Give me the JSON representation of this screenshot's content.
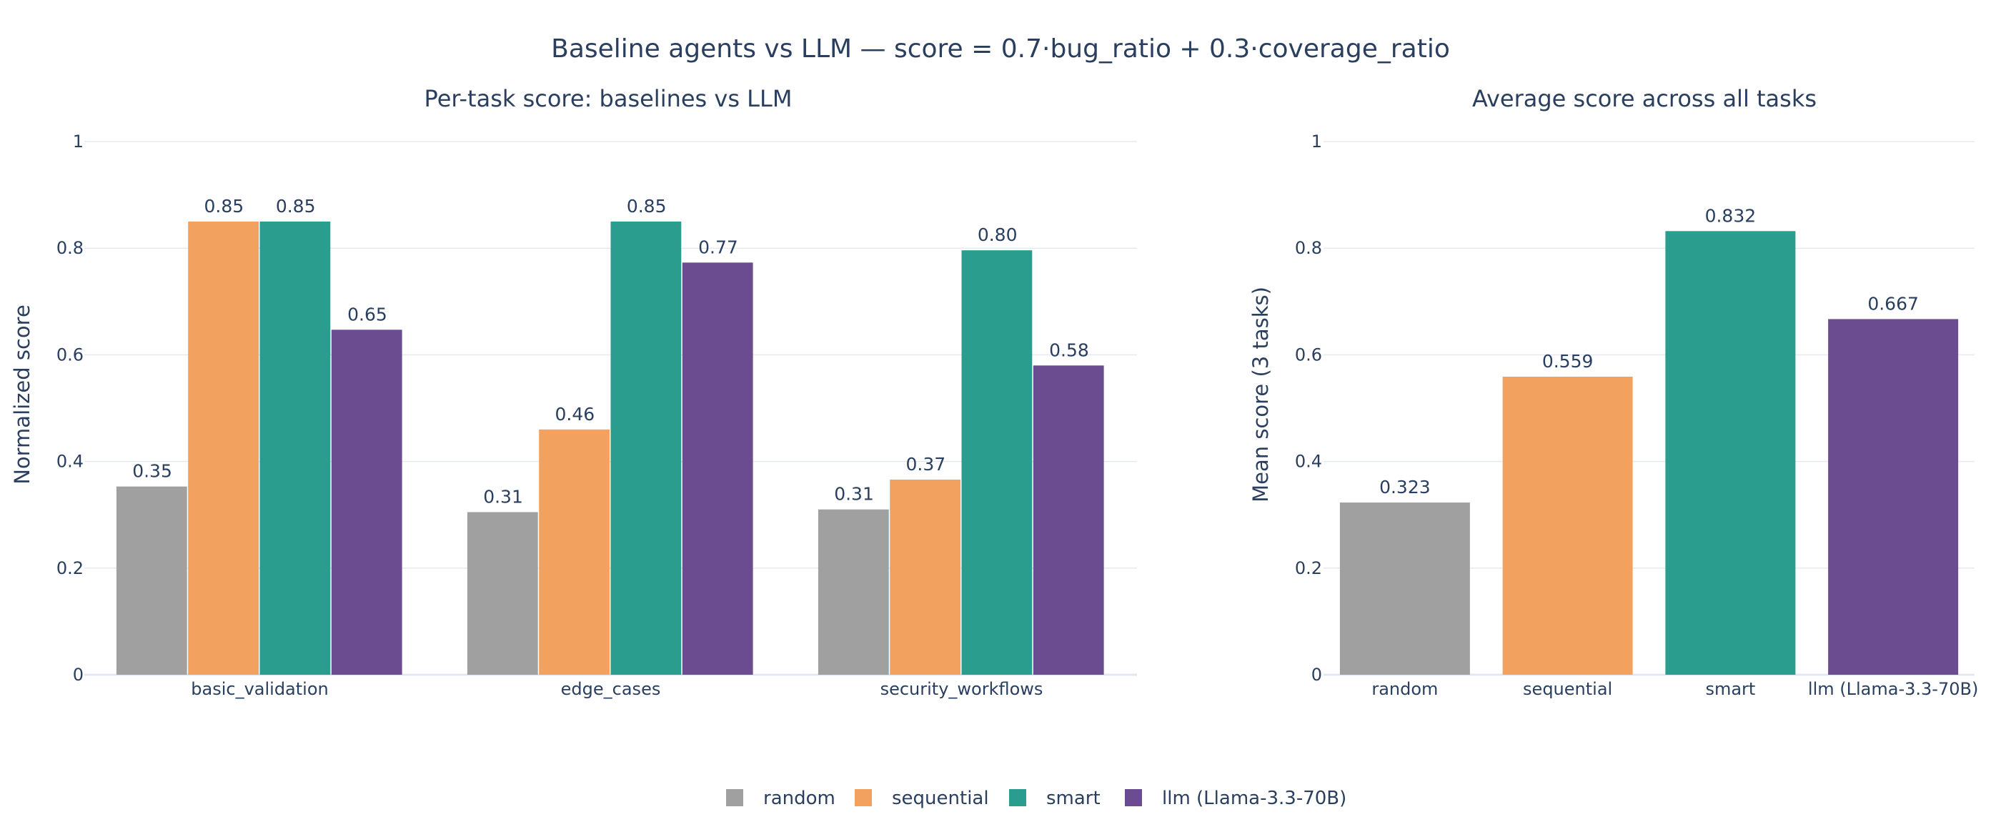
{
  "title": "Baseline agents vs LLM — score = 0.7·bug_ratio + 0.3·coverage_ratio",
  "colors": {
    "random": "#a0a0a0",
    "sequential": "#f2a25e",
    "smart": "#2a9d8f",
    "llm (Llama-3.3-70B)": "#6b4c91"
  },
  "legend": {
    "placement": "bottom-center",
    "entries": [
      "random",
      "sequential",
      "smart",
      "llm (Llama-3.3-70B)"
    ]
  },
  "chart_data": [
    {
      "type": "bar",
      "title": "Per-task score: baselines vs LLM",
      "xlabel": "",
      "ylabel": "Normalized score",
      "ylim": [
        0,
        1
      ],
      "yticks": [
        0,
        0.2,
        0.4,
        0.6,
        0.8,
        1
      ],
      "grid": true,
      "categories": [
        "basic_validation",
        "edge_cases",
        "security_workflows"
      ],
      "series": [
        {
          "name": "random",
          "values": [
            0.353,
            0.305,
            0.31
          ],
          "labels": [
            "0.35",
            "0.31",
            "0.31"
          ]
        },
        {
          "name": "sequential",
          "values": [
            0.85,
            0.46,
            0.366
          ],
          "labels": [
            "0.85",
            "0.46",
            "0.37"
          ]
        },
        {
          "name": "smart",
          "values": [
            0.85,
            0.85,
            0.796
          ],
          "labels": [
            "0.85",
            "0.85",
            "0.80"
          ]
        },
        {
          "name": "llm (Llama-3.3-70B)",
          "values": [
            0.647,
            0.773,
            0.58
          ],
          "labels": [
            "0.65",
            "0.77",
            "0.58"
          ]
        }
      ]
    },
    {
      "type": "bar",
      "title": "Average score across all tasks",
      "xlabel": "",
      "ylabel": "Mean score (3 tasks)",
      "ylim": [
        0,
        1
      ],
      "yticks": [
        0,
        0.2,
        0.4,
        0.6,
        0.8,
        1
      ],
      "grid": true,
      "categories": [
        "random",
        "sequential",
        "smart",
        "llm (Llama-3.3-70B)"
      ],
      "values": [
        0.323,
        0.559,
        0.832,
        0.667
      ],
      "labels": [
        "0.323",
        "0.559",
        "0.832",
        "0.667"
      ]
    }
  ]
}
